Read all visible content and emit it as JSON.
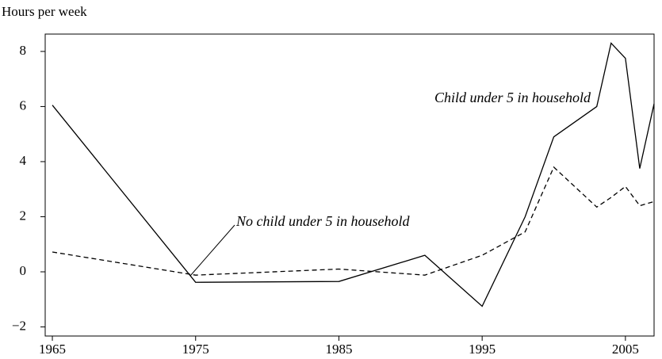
{
  "chart_data": {
    "type": "line",
    "y_label": "Hours per week",
    "x": [
      1965,
      1975,
      1985,
      1991,
      1995,
      1998,
      2000,
      2003,
      2004,
      2005,
      2006,
      2007
    ],
    "series": [
      {
        "name": "Child under 5 in household",
        "color": "#000000",
        "dash": "solid",
        "values": [
          6.05,
          -0.38,
          -0.35,
          0.6,
          -1.25,
          2.0,
          4.9,
          6.0,
          8.3,
          7.75,
          3.75,
          6.1
        ]
      },
      {
        "name": "No child under 5 in household",
        "color": "#000000",
        "dash": "dashed",
        "values": [
          0.72,
          -0.12,
          0.1,
          -0.12,
          0.6,
          1.45,
          3.8,
          2.35,
          2.7,
          3.1,
          2.4,
          2.55
        ]
      }
    ],
    "xlim": [
      1964.5,
      2007
    ],
    "xticks": [
      1965,
      1975,
      1985,
      1995,
      2005
    ],
    "ylim": [
      -2.33,
      8.63
    ],
    "yticks": [
      {
        "value": -2,
        "label": "−2"
      },
      0,
      2,
      4,
      6,
      8
    ],
    "grid": false
  }
}
